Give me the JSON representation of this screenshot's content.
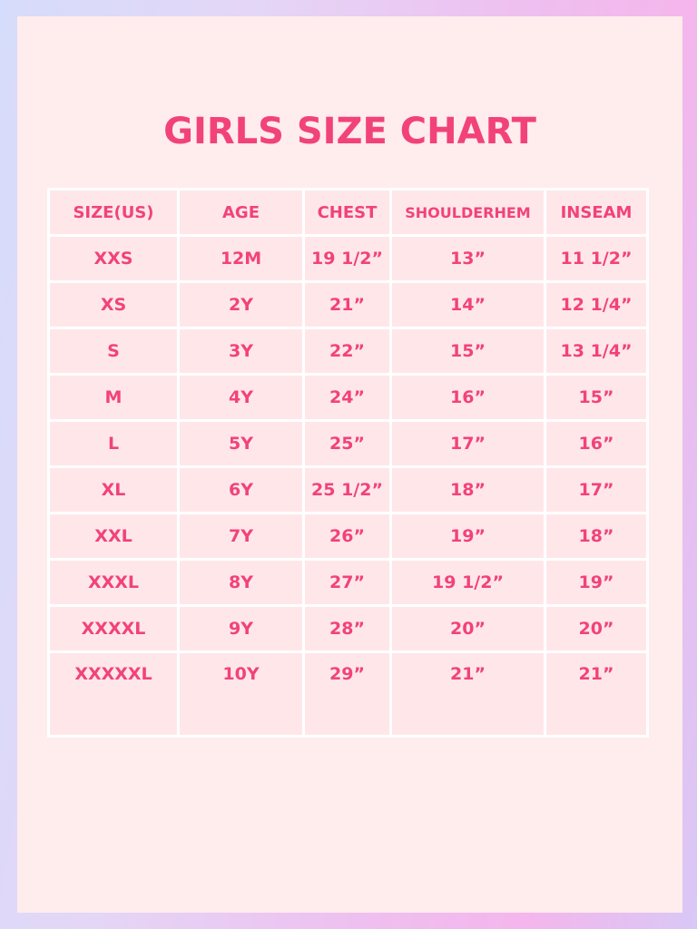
{
  "title": "GIRLS SIZE CHART",
  "colors": {
    "accent": "#f2427a",
    "panel": "#ffecec",
    "grid": "#ffffff"
  },
  "headers": [
    "SIZE(US)",
    "AGE",
    "CHEST",
    "SHOULDERHEM",
    "INSEAM"
  ],
  "rows": [
    [
      "XXS",
      "12M",
      "19 1/2”",
      "13”",
      "11 1/2”"
    ],
    [
      "XS",
      "2Y",
      "21”",
      "14”",
      "12 1/4”"
    ],
    [
      "S",
      "3Y",
      "22”",
      "15”",
      "13 1/4”"
    ],
    [
      "M",
      "4Y",
      "24”",
      "16”",
      "15”"
    ],
    [
      "L",
      "5Y",
      "25”",
      "17”",
      "16”"
    ],
    [
      "XL",
      "6Y",
      "25 1/2”",
      "18”",
      "17”"
    ],
    [
      "XXL",
      "7Y",
      "26”",
      "19”",
      "18”"
    ],
    [
      "XXXL",
      "8Y",
      "27”",
      "19 1/2”",
      "19”"
    ],
    [
      "XXXXL",
      "9Y",
      "28”",
      "20”",
      "20”"
    ],
    [
      "XXXXXL",
      "10Y",
      "29”",
      "21”",
      "21”"
    ]
  ]
}
